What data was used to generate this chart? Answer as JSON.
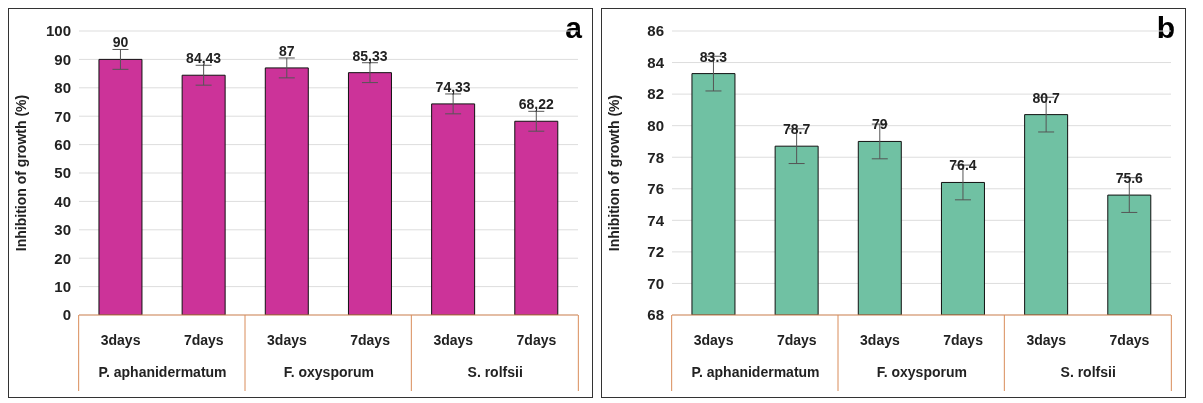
{
  "chart_data": [
    {
      "type": "bar",
      "title": "a",
      "ylabel": "Inhibition of growth (%)",
      "categories": [
        "3days",
        "7days",
        "3days",
        "7days",
        "3days",
        "7days"
      ],
      "annotations": [
        "P. aphanidermatum",
        "F. oxysporum",
        "S. rolfsii"
      ],
      "values": [
        90,
        84.43,
        87,
        85.33,
        74.33,
        68.22
      ],
      "value_labels": [
        "90",
        "84,43",
        "87",
        "85,33",
        "74,33",
        "68,22"
      ],
      "errors": [
        3.5,
        3.5,
        3.5,
        3.5,
        3.5,
        3.5
      ],
      "color": "#cc3399",
      "ylim": [
        0,
        100
      ],
      "yticks": [
        0,
        10,
        20,
        30,
        40,
        50,
        60,
        70,
        80,
        90,
        100
      ],
      "grid": "y"
    },
    {
      "type": "bar",
      "title": "b",
      "ylabel": "Inhibition of growth (%)",
      "categories": [
        "3days",
        "7days",
        "3days",
        "7days",
        "3days",
        "7days"
      ],
      "annotations": [
        "P. aphanidermatum",
        "F. oxysporum",
        "S. rolfsii"
      ],
      "values": [
        83.3,
        78.7,
        79,
        76.4,
        80.7,
        75.6
      ],
      "data_labels": true,
      "errors": [
        1.1,
        1.1,
        1.1,
        1.1,
        1.1,
        1.1
      ],
      "color": "#70c1a3",
      "ylim": [
        68,
        86
      ],
      "yticks": [
        68,
        70,
        72,
        74,
        76,
        78,
        80,
        82,
        84,
        86
      ],
      "grid": "y"
    }
  ]
}
